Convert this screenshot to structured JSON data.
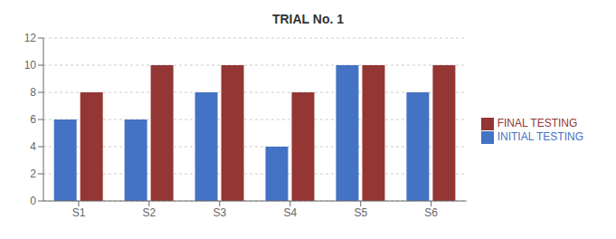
{
  "chart_data": {
    "type": "bar",
    "title": "TRIAL No. 1",
    "categories": [
      "S1",
      "S2",
      "S3",
      "S4",
      "S5",
      "S6"
    ],
    "series": [
      {
        "name": "INITIAL TESTING",
        "color": "#4472C4",
        "values": [
          6,
          6,
          8,
          4,
          10,
          8
        ]
      },
      {
        "name": "FINAL TESTING",
        "color": "#943634",
        "values": [
          8,
          10,
          10,
          8,
          10,
          10
        ]
      }
    ],
    "ylim": [
      0,
      12
    ],
    "yticks": [
      0,
      2,
      4,
      6,
      8,
      10,
      12
    ],
    "grid": true,
    "legend": "right"
  }
}
